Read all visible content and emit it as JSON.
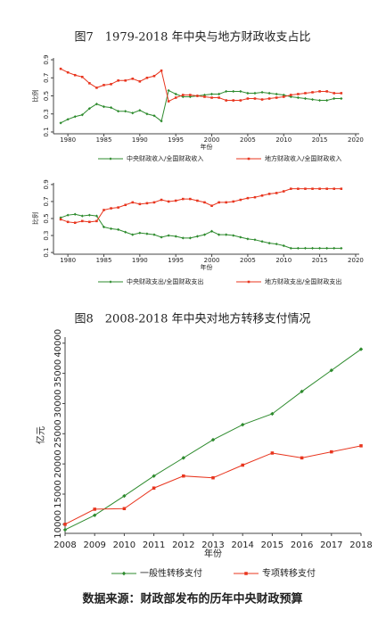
{
  "chart_data": [
    {
      "type": "line",
      "title": "图7　1979-2018 年中央与地方财政收支占比",
      "xlabel": "年份",
      "ylabel": "比例",
      "x": [
        1979,
        1980,
        1981,
        1982,
        1983,
        1984,
        1985,
        1986,
        1987,
        1988,
        1989,
        1990,
        1991,
        1992,
        1993,
        1994,
        1995,
        1996,
        1997,
        1998,
        1999,
        2000,
        2001,
        2002,
        2003,
        2004,
        2005,
        2006,
        2007,
        2008,
        2009,
        2010,
        2011,
        2012,
        2013,
        2014,
        2015,
        2016,
        2017,
        2018
      ],
      "xlim": [
        1978,
        2020.5
      ],
      "xticks": [
        1980,
        1985,
        1990,
        1995,
        2000,
        2005,
        2010,
        2015,
        2020
      ],
      "ylim": [
        0.08,
        0.92
      ],
      "yticks": [
        0.1,
        0.3,
        0.5,
        0.7,
        0.9
      ],
      "series": [
        {
          "name": "中央财政收入/全国财政收入",
          "color": "#2e8b2e",
          "values": [
            0.2,
            0.24,
            0.27,
            0.29,
            0.36,
            0.41,
            0.38,
            0.37,
            0.33,
            0.33,
            0.31,
            0.34,
            0.3,
            0.28,
            0.22,
            0.56,
            0.52,
            0.49,
            0.49,
            0.5,
            0.51,
            0.52,
            0.52,
            0.55,
            0.55,
            0.55,
            0.53,
            0.53,
            0.54,
            0.53,
            0.52,
            0.51,
            0.49,
            0.48,
            0.47,
            0.46,
            0.45,
            0.45,
            0.47,
            0.47
          ]
        },
        {
          "name": "地方财政收入/全国财政收入",
          "color": "#e8351e",
          "values": [
            0.8,
            0.76,
            0.73,
            0.71,
            0.64,
            0.59,
            0.62,
            0.63,
            0.67,
            0.67,
            0.69,
            0.66,
            0.7,
            0.72,
            0.78,
            0.44,
            0.48,
            0.51,
            0.51,
            0.5,
            0.49,
            0.48,
            0.48,
            0.45,
            0.45,
            0.45,
            0.47,
            0.47,
            0.46,
            0.47,
            0.48,
            0.49,
            0.51,
            0.52,
            0.53,
            0.54,
            0.55,
            0.55,
            0.53,
            0.53
          ]
        }
      ]
    },
    {
      "type": "line",
      "xlabel": "年份",
      "ylabel": "比例",
      "x": [
        1979,
        1980,
        1981,
        1982,
        1983,
        1984,
        1985,
        1986,
        1987,
        1988,
        1989,
        1990,
        1991,
        1992,
        1993,
        1994,
        1995,
        1996,
        1997,
        1998,
        1999,
        2000,
        2001,
        2002,
        2003,
        2004,
        2005,
        2006,
        2007,
        2008,
        2009,
        2010,
        2011,
        2012,
        2013,
        2014,
        2015,
        2016,
        2017,
        2018
      ],
      "xlim": [
        1978,
        2020.5
      ],
      "xticks": [
        1980,
        1985,
        1990,
        1995,
        2000,
        2005,
        2010,
        2015,
        2020
      ],
      "ylim": [
        0.08,
        0.92
      ],
      "yticks": [
        0.1,
        0.3,
        0.5,
        0.7,
        0.9
      ],
      "series": [
        {
          "name": "中央财政支出/全国财政支出",
          "color": "#2e8b2e",
          "values": [
            0.51,
            0.54,
            0.55,
            0.53,
            0.54,
            0.53,
            0.4,
            0.38,
            0.37,
            0.34,
            0.31,
            0.33,
            0.32,
            0.31,
            0.28,
            0.3,
            0.29,
            0.27,
            0.27,
            0.29,
            0.31,
            0.35,
            0.31,
            0.31,
            0.3,
            0.28,
            0.26,
            0.25,
            0.23,
            0.21,
            0.2,
            0.18,
            0.15,
            0.15,
            0.15,
            0.15,
            0.15,
            0.15,
            0.15,
            0.15
          ]
        },
        {
          "name": "地方财政支出/全国财政支出",
          "color": "#e8351e",
          "values": [
            0.49,
            0.46,
            0.45,
            0.47,
            0.46,
            0.47,
            0.6,
            0.62,
            0.63,
            0.66,
            0.69,
            0.67,
            0.68,
            0.69,
            0.72,
            0.7,
            0.71,
            0.73,
            0.73,
            0.71,
            0.69,
            0.65,
            0.69,
            0.69,
            0.7,
            0.72,
            0.74,
            0.75,
            0.77,
            0.79,
            0.8,
            0.82,
            0.85,
            0.85,
            0.85,
            0.85,
            0.85,
            0.85,
            0.85,
            0.85
          ]
        }
      ]
    },
    {
      "type": "line",
      "title": "图8　2008-2018 年中央对地方转移支付情况",
      "xlabel": "年份",
      "ylabel": "亿元",
      "x": [
        2008,
        2009,
        2010,
        2011,
        2012,
        2013,
        2014,
        2015,
        2016,
        2017,
        2018
      ],
      "xlim": [
        2008,
        2018
      ],
      "xticks": [
        2008,
        2009,
        2010,
        2011,
        2012,
        2013,
        2014,
        2015,
        2016,
        2017,
        2018
      ],
      "ylim": [
        8500,
        41000
      ],
      "yticks": [
        10000,
        15000,
        20000,
        25000,
        30000,
        35000,
        40000
      ],
      "series": [
        {
          "name": "一般性转移支付",
          "color": "#2e8b2e",
          "values": [
            9100,
            11500,
            14700,
            18000,
            21000,
            24000,
            26500,
            28300,
            32000,
            35500,
            39000
          ]
        },
        {
          "name": "专项转移支付",
          "color": "#e8351e",
          "values": [
            10000,
            12500,
            12600,
            16000,
            18000,
            17700,
            19800,
            21800,
            21000,
            22000,
            23000
          ]
        }
      ]
    }
  ],
  "source": "数据来源：财政部发布的历年中央财政预算"
}
